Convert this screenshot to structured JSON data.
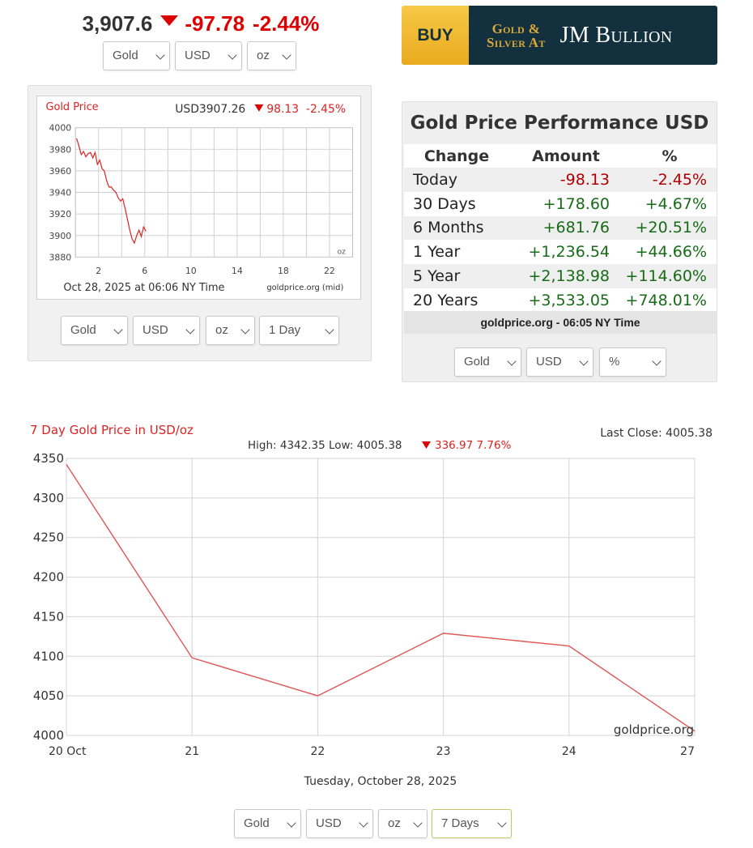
{
  "ticker": {
    "price": "3,907.6",
    "change": "-97.78",
    "percent": "-2.44%",
    "up_color": "#176b17",
    "down_color": "#dd0000",
    "arrow_icon": "triangle-down-icon"
  },
  "ticker_selectors": {
    "metal": "Gold",
    "currency": "USD",
    "unit": "oz"
  },
  "ad": {
    "buy_label": "BUY",
    "tagline_line1": "Gold &",
    "tagline_line2": "Silver At",
    "brand": "JM Bullion"
  },
  "mini_chart": {
    "title": "Gold Price",
    "headline_price": "USD3907.26",
    "headline_change": "98.13",
    "headline_percent": "-2.45%",
    "unit_label": "oz",
    "timestamp": "Oct 28, 2025 at 06:06 NY Time",
    "source": "goldprice.org (mid)",
    "selectors": {
      "metal": "Gold",
      "currency": "USD",
      "unit": "oz",
      "period": "1 Day"
    }
  },
  "performance": {
    "title": "Gold Price Performance USD",
    "headers": [
      "Change",
      "Amount",
      "%"
    ],
    "rows": [
      {
        "label": "Today",
        "amount": "-98.13",
        "percent": "-2.45%",
        "sign": "neg"
      },
      {
        "label": "30 Days",
        "amount": "+178.60",
        "percent": "+4.67%",
        "sign": "pos"
      },
      {
        "label": "6 Months",
        "amount": "+681.76",
        "percent": "+20.51%",
        "sign": "pos"
      },
      {
        "label": "1 Year",
        "amount": "+1,236.54",
        "percent": "+44.66%",
        "sign": "pos"
      },
      {
        "label": "5 Year",
        "amount": "+2,138.98",
        "percent": "+114.60%",
        "sign": "pos"
      },
      {
        "label": "20 Years",
        "amount": "+3,533.05",
        "percent": "+748.01%",
        "sign": "pos"
      }
    ],
    "footer": "goldprice.org - 06:05 NY Time",
    "selectors": {
      "metal": "Gold",
      "currency": "USD",
      "unit": "%"
    }
  },
  "big_chart": {
    "title": "7 Day Gold Price in USD/oz",
    "last_close": "Last Close: 4005.38",
    "summary_high_low": "High: 4342.35 Low: 4005.38",
    "summary_change": "336.97 7.76%",
    "watermark": "goldprice.org",
    "date_caption": "Tuesday, October 28, 2025",
    "selectors": {
      "metal": "Gold",
      "currency": "USD",
      "unit": "oz",
      "period": "7 Days"
    }
  },
  "chart_data": [
    {
      "type": "line",
      "title": "Gold Price",
      "x_unit": "hour",
      "xlim": [
        0,
        24
      ],
      "xticks": [
        2,
        6,
        10,
        14,
        18,
        22
      ],
      "ylim": [
        3880,
        4000
      ],
      "yticks": [
        3880,
        3900,
        3920,
        3940,
        3960,
        3980,
        4000
      ],
      "grid": true,
      "line_color": "#dd2222",
      "series": [
        {
          "x": [
            0.1,
            0.3,
            0.5,
            0.7,
            0.9,
            1.1,
            1.3,
            1.5,
            1.7,
            1.9,
            2.1,
            2.3,
            2.5,
            2.7,
            2.9,
            3.1,
            3.3,
            3.5,
            3.7,
            3.9,
            4.1,
            4.3,
            4.5,
            4.7,
            4.9,
            5.1,
            5.3,
            5.5,
            5.7,
            5.9,
            6.1
          ],
          "y": [
            3990,
            3983,
            3975,
            3978,
            3973,
            3976,
            3977,
            3972,
            3977,
            3966,
            3970,
            3962,
            3960,
            3951,
            3945,
            3945,
            3942,
            3940,
            3935,
            3932,
            3934,
            3925,
            3915,
            3905,
            3897,
            3893,
            3900,
            3905,
            3899,
            3908,
            3904
          ]
        }
      ]
    },
    {
      "type": "line",
      "title": "7 Day Gold Price in USD/oz",
      "categories": [
        "20 Oct",
        "21",
        "22",
        "23",
        "24",
        "27"
      ],
      "values": [
        4342.35,
        4098,
        4050,
        4129,
        4113,
        4005.38
      ],
      "ylim": [
        4000,
        4350
      ],
      "yticks": [
        4000,
        4050,
        4100,
        4150,
        4200,
        4250,
        4300,
        4350
      ],
      "grid": true,
      "line_color": "#e05555"
    }
  ]
}
